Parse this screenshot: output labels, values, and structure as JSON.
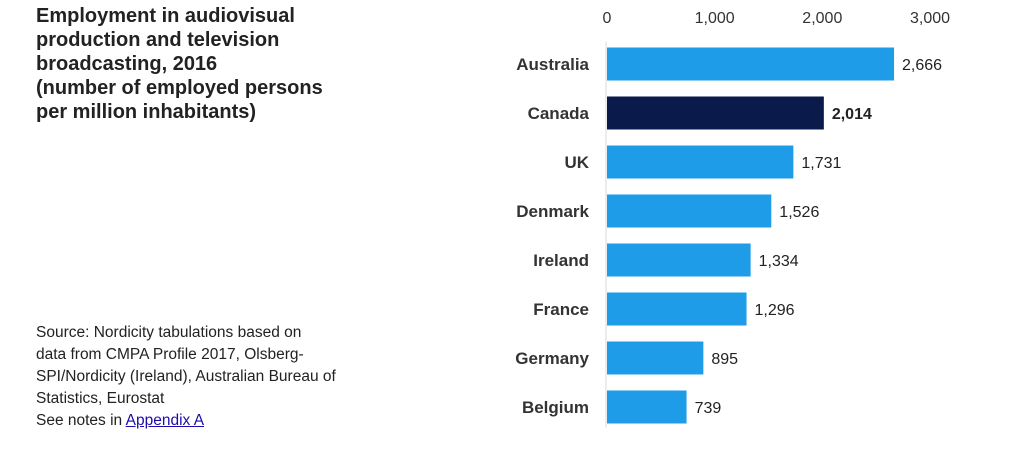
{
  "title": {
    "lines": [
      "Employment in audiovisual",
      "production and television",
      "broadcasting, 2016",
      "(number of employed persons",
      "per million inhabitants)"
    ]
  },
  "source": {
    "lines": [
      "Source: Nordicity tabulations based on",
      "data from CMPA Profile 2017, Olsberg-",
      "SPI/Nordicity (Ireland), Australian Bureau of",
      "Statistics, Eurostat"
    ],
    "notes_prefix": "See notes in ",
    "link_text": "Appendix A"
  },
  "chart_data": {
    "type": "bar",
    "orientation": "horizontal",
    "categories": [
      "Australia",
      "Canada",
      "UK",
      "Denmark",
      "Ireland",
      "France",
      "Germany",
      "Belgium"
    ],
    "values": [
      2666,
      2014,
      1731,
      1526,
      1334,
      1296,
      895,
      739
    ],
    "value_labels": [
      "2,666",
      "2,014",
      "1,731",
      "1,526",
      "1,334",
      "1,296",
      "895",
      "739"
    ],
    "highlight": "Canada",
    "xlim": [
      0,
      3000
    ],
    "xticks": [
      0,
      1000,
      2000,
      3000
    ],
    "xtick_labels": [
      "0",
      "1,000",
      "2,000",
      "3,000"
    ],
    "x_axis_position": "top",
    "grid": false,
    "colors": {
      "default": "#1f9ce8",
      "highlight": "#0a1a4a"
    }
  }
}
